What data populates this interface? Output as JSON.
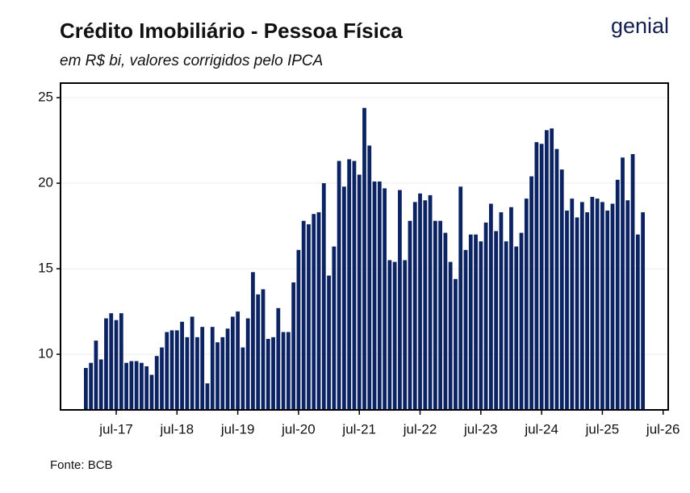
{
  "chart_data": {
    "type": "bar",
    "title": "Crédito Imobiliário - Pessoa Física",
    "subtitle": "em R$ bi, valores corrigidos pelo IPCA",
    "source": "Fonte: BCB",
    "logo": "genial",
    "color": "#0b2362",
    "grid": true,
    "x": [
      "2017-01",
      "2017-02",
      "2017-03",
      "2017-04",
      "2017-05",
      "2017-06",
      "2017-07",
      "2017-08",
      "2017-09",
      "2017-10",
      "2017-11",
      "2017-12",
      "2018-01",
      "2018-02",
      "2018-03",
      "2018-04",
      "2018-05",
      "2018-06",
      "2018-07",
      "2018-08",
      "2018-09",
      "2018-10",
      "2018-11",
      "2018-12",
      "2019-01",
      "2019-02",
      "2019-03",
      "2019-04",
      "2019-05",
      "2019-06",
      "2019-07",
      "2019-08",
      "2019-09",
      "2019-10",
      "2019-11",
      "2019-12",
      "2020-01",
      "2020-02",
      "2020-03",
      "2020-04",
      "2020-05",
      "2020-06",
      "2020-07",
      "2020-08",
      "2020-09",
      "2020-10",
      "2020-11",
      "2020-12",
      "2021-01",
      "2021-02",
      "2021-03",
      "2021-04",
      "2021-05",
      "2021-06",
      "2021-07",
      "2021-08",
      "2021-09",
      "2021-10",
      "2021-11",
      "2021-12",
      "2022-01",
      "2022-02",
      "2022-03",
      "2022-04",
      "2022-05",
      "2022-06",
      "2022-07",
      "2022-08",
      "2022-09",
      "2022-10",
      "2022-11",
      "2022-12",
      "2023-01",
      "2023-02",
      "2023-03",
      "2023-04",
      "2023-05",
      "2023-06",
      "2023-07",
      "2023-08",
      "2023-09",
      "2023-10",
      "2023-11",
      "2023-12",
      "2024-01",
      "2024-02",
      "2024-03",
      "2024-04",
      "2024-05",
      "2024-06",
      "2024-07",
      "2024-08",
      "2024-09",
      "2024-10",
      "2024-11",
      "2024-12",
      "2025-01",
      "2025-02",
      "2025-03",
      "2025-04",
      "2025-05",
      "2025-06",
      "2025-07",
      "2025-08",
      "2025-09",
      "2025-10",
      "2025-11",
      "2025-12",
      "2026-01",
      "2026-02",
      "2026-03"
    ],
    "values": [
      9.2,
      9.5,
      10.8,
      9.7,
      12.1,
      12.4,
      12.0,
      12.4,
      9.5,
      9.6,
      9.6,
      9.5,
      9.3,
      8.8,
      9.9,
      10.4,
      11.3,
      11.4,
      11.4,
      11.9,
      11.0,
      12.2,
      11.0,
      11.6,
      8.3,
      11.6,
      10.7,
      11.0,
      11.5,
      12.2,
      12.5,
      10.4,
      12.1,
      14.8,
      13.5,
      13.8,
      10.9,
      11.0,
      12.7,
      11.3,
      11.3,
      14.2,
      16.1,
      17.8,
      17.6,
      18.2,
      18.3,
      20.0,
      14.6,
      16.3,
      21.3,
      19.8,
      21.4,
      21.3,
      20.5,
      24.4,
      22.2,
      20.1,
      20.1,
      19.7,
      15.5,
      15.4,
      19.6,
      15.5,
      17.8,
      18.9,
      19.4,
      19.0,
      19.3,
      17.8,
      17.8,
      17.1,
      15.4,
      14.4,
      19.8,
      16.1,
      17.0,
      17.0,
      16.6,
      17.7,
      18.8,
      17.2,
      18.3,
      16.6,
      18.6,
      16.3,
      17.1,
      19.1,
      20.4,
      22.4,
      22.3,
      23.1,
      23.2,
      22.0,
      20.8,
      18.4,
      19.1,
      18.0,
      18.9,
      18.3,
      19.2,
      19.1,
      18.9,
      18.4,
      18.8,
      20.2,
      21.5,
      19.0,
      21.7,
      17.0,
      18.3
    ],
    "xlim": [
      "2016-08",
      "2026-08"
    ],
    "xticks": [
      {
        "value": "2017-07",
        "label": "jul-17"
      },
      {
        "value": "2018-07",
        "label": "jul-18"
      },
      {
        "value": "2019-07",
        "label": "jul-19"
      },
      {
        "value": "2020-07",
        "label": "jul-20"
      },
      {
        "value": "2021-07",
        "label": "jul-21"
      },
      {
        "value": "2022-07",
        "label": "jul-22"
      },
      {
        "value": "2023-07",
        "label": "jul-23"
      },
      {
        "value": "2024-07",
        "label": "jul-24"
      },
      {
        "value": "2025-07",
        "label": "jul-25"
      },
      {
        "value": "2026-07",
        "label": "jul-26"
      }
    ],
    "ylim": [
      6.75,
      25.85
    ],
    "yticks": [
      10,
      15,
      20,
      25
    ]
  }
}
